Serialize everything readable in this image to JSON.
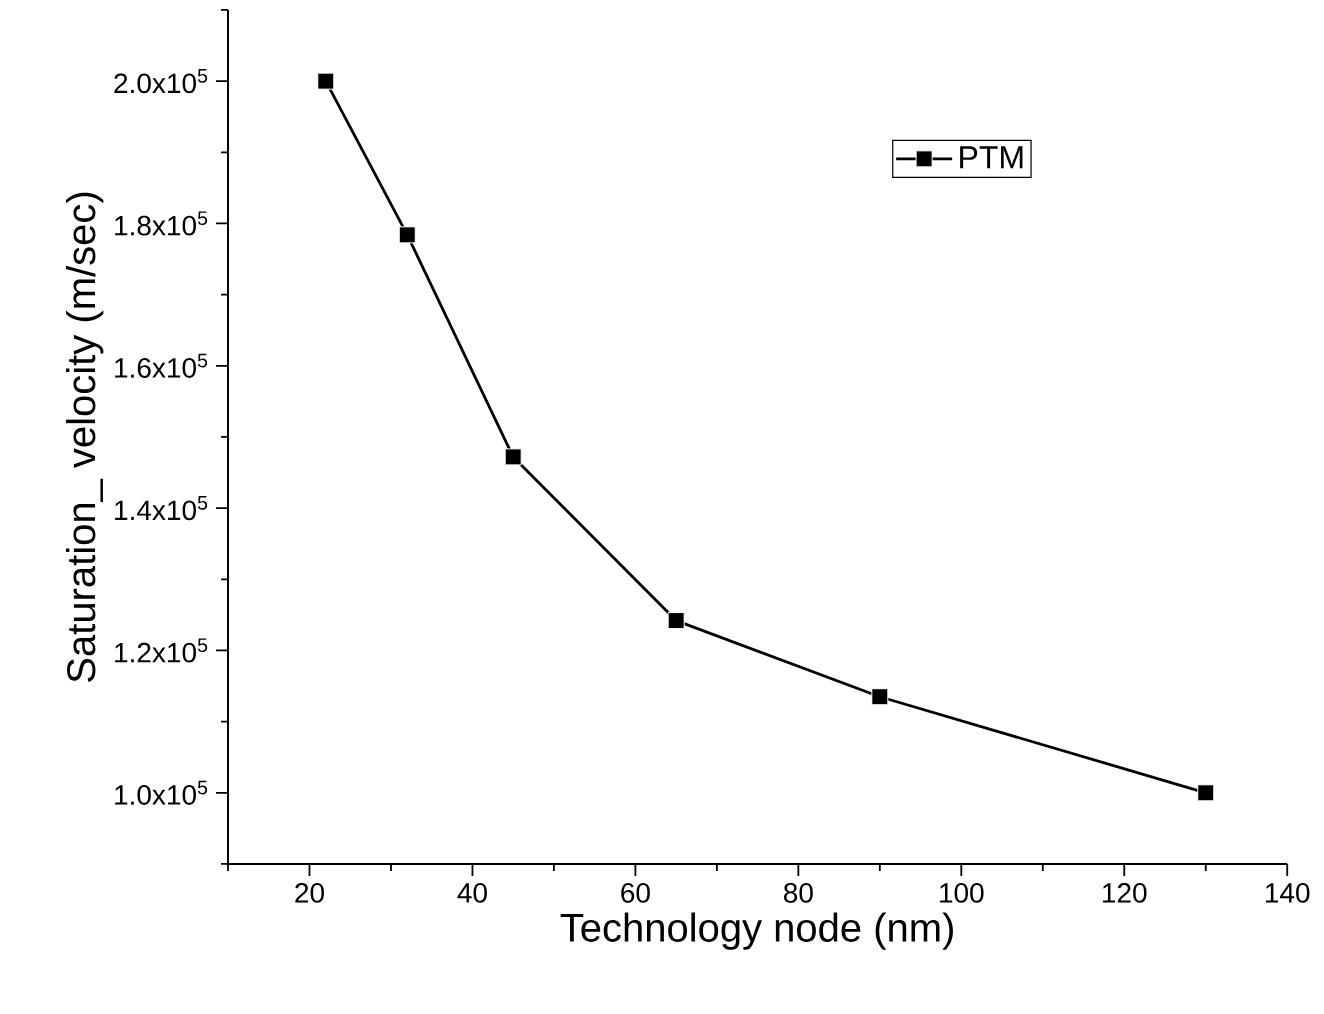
{
  "chart_data": {
    "type": "line",
    "xlabel": "Technology node (nm)",
    "ylabel": "Saturation_ velocity (m/sec)",
    "x": [
      22,
      32,
      45,
      65,
      90,
      130
    ],
    "series": [
      {
        "name": "PTM",
        "color": "#000000",
        "values": [
          200000,
          178400,
          147200,
          124200,
          113500,
          100000
        ]
      }
    ],
    "xlim": [
      10,
      140
    ],
    "xticks": [
      {
        "value": 10,
        "label": null
      },
      20,
      {
        "value": 30,
        "label": null
      },
      40,
      {
        "value": 50,
        "label": null
      },
      60,
      {
        "value": 70,
        "label": null
      },
      80,
      {
        "value": 90,
        "label": null
      },
      100,
      {
        "value": 110,
        "label": null
      },
      120,
      {
        "value": 130,
        "label": null
      },
      140
    ],
    "ylim": [
      90000,
      210000
    ],
    "yticks": [
      {
        "value": 90000,
        "label": null
      },
      {
        "value": 100000,
        "label": "1.0x10$^{5}$"
      },
      {
        "value": 110000,
        "label": null
      },
      {
        "value": 120000,
        "label": "1.2x10$^{5}$"
      },
      {
        "value": 130000,
        "label": null
      },
      {
        "value": 140000,
        "label": "1.4x10$^{5}$"
      },
      {
        "value": 150000,
        "label": null
      },
      {
        "value": 160000,
        "label": "1.6x10$^{5}$"
      },
      {
        "value": 170000,
        "label": null
      },
      {
        "value": 180000,
        "label": "1.8x10$^{5}$"
      },
      {
        "value": 190000,
        "label": null
      },
      {
        "value": 200000,
        "label": "2.0x10$^{5}$"
      },
      {
        "value": 210000,
        "label": null
      }
    ],
    "grid": false,
    "legend": "top right",
    "marker": "square",
    "line_style": "solid"
  }
}
